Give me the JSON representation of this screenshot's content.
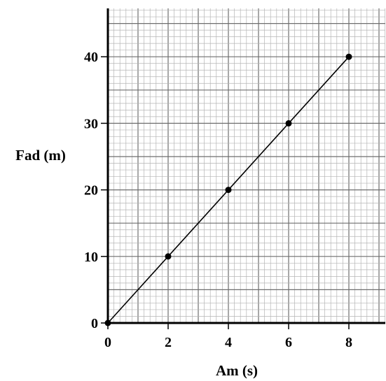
{
  "chart_data": {
    "type": "scatter",
    "title": "",
    "xlabel": "Am (s)",
    "ylabel": "Fad (m)",
    "x_ticks": [
      "0",
      "2",
      "4",
      "6",
      "8"
    ],
    "y_ticks": [
      "0",
      "10",
      "20",
      "30",
      "40"
    ],
    "xlim": [
      0,
      9.2
    ],
    "ylim": [
      0,
      47.5
    ],
    "grid": true,
    "legend": "none",
    "best_fit_line": true,
    "series": [
      {
        "x": [
          0,
          2,
          4,
          6,
          8
        ],
        "y": [
          0,
          10,
          20,
          30,
          40
        ]
      }
    ],
    "colors": {
      "grid_minor": "#b5b5b5",
      "grid_major": "#6e6e6e",
      "axis": "#000000",
      "points": "#000000",
      "line": "#000000"
    }
  }
}
